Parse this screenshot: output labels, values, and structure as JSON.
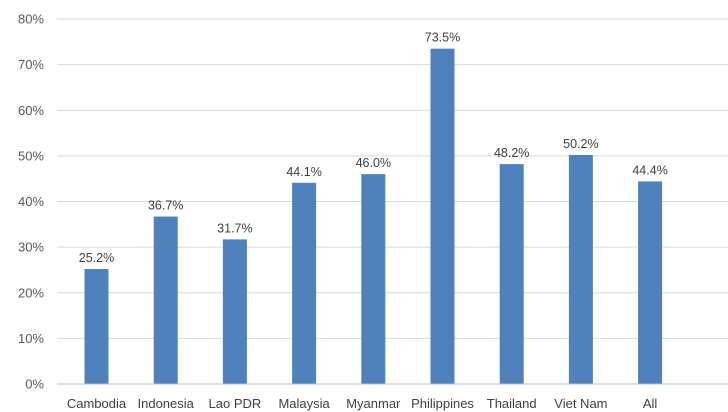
{
  "chart_data": {
    "type": "bar",
    "categories": [
      "Cambodia",
      "Indonesia",
      "Lao PDR",
      "Malaysia",
      "Myanmar",
      "Philippines",
      "Thailand",
      "Viet Nam",
      "All"
    ],
    "values": [
      25.2,
      36.7,
      31.7,
      44.1,
      46.0,
      73.5,
      48.2,
      50.2,
      44.4
    ],
    "data_labels": [
      "25.2%",
      "36.7%",
      "31.7%",
      "44.1%",
      "46.0%",
      "73.5%",
      "48.2%",
      "50.2%",
      "44.4%"
    ],
    "y_ticks": [
      0,
      10,
      20,
      30,
      40,
      50,
      60,
      70,
      80
    ],
    "y_tick_labels": [
      "0%",
      "10%",
      "20%",
      "30%",
      "40%",
      "50%",
      "60%",
      "70%",
      "80%"
    ],
    "ylim": [
      0,
      80
    ],
    "grid": true,
    "legend": "none",
    "bar_color": "#4f81bd"
  }
}
